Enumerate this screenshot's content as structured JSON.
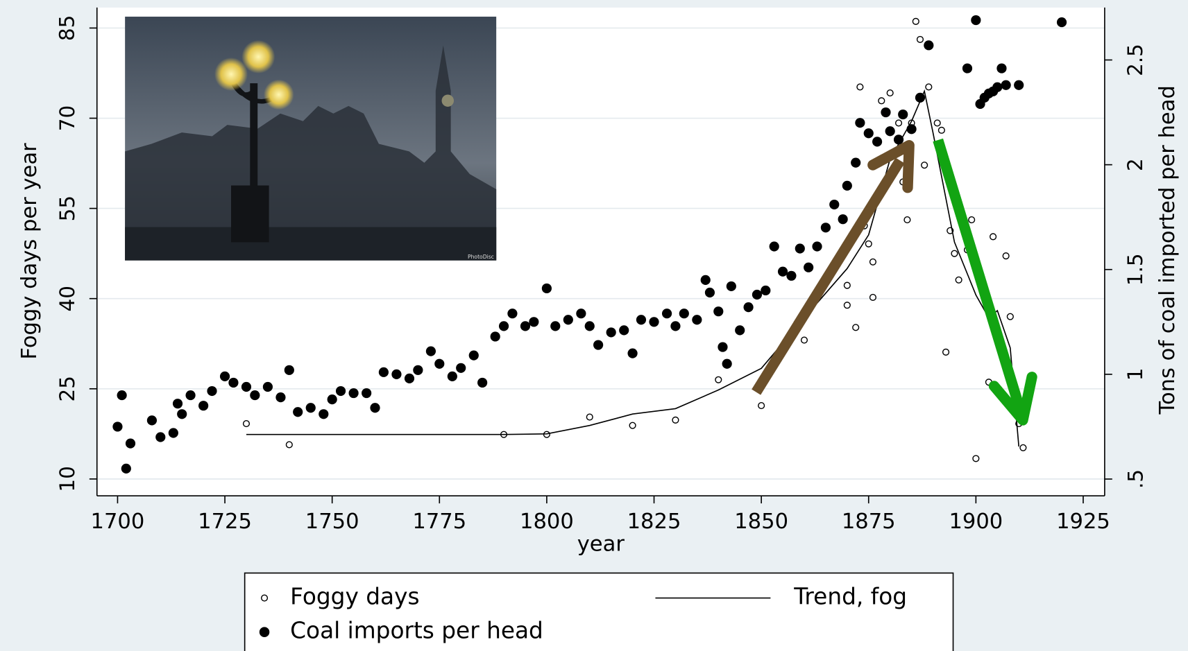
{
  "chart_data": {
    "type": "scatter",
    "xlabel": "year",
    "ylabel": "Foggy days per year",
    "y2label": "Tons of coal imported per head",
    "xlim": [
      1695.2,
      1930
    ],
    "ylim": [
      7.2,
      88.4
    ],
    "y2lim": [
      0.42,
      2.75
    ],
    "xticks": [
      1700,
      1725,
      1750,
      1775,
      1800,
      1825,
      1850,
      1875,
      1900,
      1925
    ],
    "yticks": [
      10,
      25,
      40,
      55,
      70,
      85
    ],
    "y2ticks": [
      {
        "value": 0.5,
        "label": ".5"
      },
      1,
      1.5,
      2,
      2.5
    ],
    "grid": true,
    "legend": "bottom",
    "series": [
      {
        "name": "Foggy days",
        "type": "scatter",
        "marker": "hollow",
        "color": "#000000",
        "x": [
          1730,
          1740,
          1790,
          1800,
          1810,
          1820,
          1830,
          1840,
          1850,
          1860,
          1870,
          1870,
          1872,
          1873,
          1874,
          1875,
          1876,
          1876,
          1878,
          1880,
          1882,
          1883,
          1884,
          1885,
          1886,
          1887,
          1888,
          1889,
          1891,
          1892,
          1893,
          1894,
          1895,
          1896,
          1898,
          1899,
          1900,
          1903,
          1904,
          1907,
          1908,
          1910,
          1911
        ],
        "values": [
          19.2,
          15.7,
          17.4,
          17.4,
          20.3,
          18.9,
          19.8,
          26.5,
          22.2,
          33.1,
          42.2,
          38.9,
          35.2,
          75.2,
          52.1,
          49.1,
          46.1,
          40.2,
          72.9,
          74.2,
          69.2,
          59.4,
          53.1,
          69.2,
          86.1,
          83.1,
          62.2,
          75.2,
          69.2,
          68,
          31.1,
          51.3,
          47.5,
          43.1,
          48.1,
          53.1,
          13.4,
          26.1,
          50.3,
          47.1,
          37,
          19.2,
          15.2
        ]
      },
      {
        "name": "Trend, fog",
        "type": "line",
        "color": "#000000",
        "x": [
          1730,
          1790,
          1800,
          1810,
          1820,
          1830,
          1840,
          1850,
          1860,
          1870,
          1875,
          1880,
          1885,
          1888,
          1890,
          1895,
          1900,
          1903,
          1905,
          1908,
          1910
        ],
        "values": [
          17.4,
          17.4,
          17.5,
          18.9,
          20.8,
          21.7,
          24.8,
          28.4,
          36.8,
          45,
          50.6,
          63.2,
          69.5,
          74.5,
          67.6,
          49.4,
          40.6,
          36.8,
          38,
          31.8,
          15.4
        ]
      },
      {
        "name": "Coal imports per head",
        "type": "scatter",
        "marker": "filled",
        "color": "#000000",
        "axis": "y2",
        "x": [
          1700,
          1701,
          1702,
          1703,
          1708,
          1710,
          1713,
          1714,
          1715,
          1717,
          1720,
          1722,
          1725,
          1727,
          1730,
          1732,
          1735,
          1738,
          1740,
          1742,
          1745,
          1748,
          1750,
          1752,
          1755,
          1758,
          1760,
          1762,
          1765,
          1768,
          1770,
          1773,
          1775,
          1778,
          1780,
          1783,
          1785,
          1788,
          1790,
          1792,
          1795,
          1797,
          1800,
          1802,
          1805,
          1808,
          1810,
          1812,
          1815,
          1818,
          1820,
          1822,
          1825,
          1828,
          1830,
          1832,
          1835,
          1837,
          1838,
          1840,
          1841,
          1842,
          1843,
          1845,
          1847,
          1849,
          1851,
          1853,
          1855,
          1857,
          1859,
          1861,
          1863,
          1865,
          1867,
          1869,
          1870,
          1872,
          1873,
          1875,
          1877,
          1879,
          1880,
          1882,
          1883,
          1885,
          1887,
          1889,
          1898,
          1900,
          1901,
          1902,
          1903,
          1904,
          1905,
          1906,
          1907,
          1910,
          1920
        ],
        "values": [
          0.75,
          0.9,
          0.55,
          0.67,
          0.78,
          0.7,
          0.72,
          0.86,
          0.81,
          0.9,
          0.85,
          0.92,
          0.99,
          0.96,
          0.94,
          0.9,
          0.94,
          0.89,
          1.02,
          0.82,
          0.84,
          0.81,
          0.88,
          0.92,
          0.91,
          0.91,
          0.84,
          1.01,
          1.0,
          0.98,
          1.02,
          1.11,
          1.05,
          0.99,
          1.03,
          1.09,
          0.96,
          1.18,
          1.23,
          1.29,
          1.23,
          1.25,
          1.41,
          1.23,
          1.26,
          1.29,
          1.23,
          1.14,
          1.2,
          1.21,
          1.1,
          1.26,
          1.25,
          1.29,
          1.23,
          1.29,
          1.26,
          1.45,
          1.39,
          1.3,
          1.13,
          1.05,
          1.42,
          1.21,
          1.32,
          1.38,
          1.4,
          1.61,
          1.49,
          1.47,
          1.6,
          1.51,
          1.61,
          1.7,
          1.81,
          1.74,
          1.9,
          2.01,
          2.2,
          2.15,
          2.11,
          2.25,
          2.16,
          2.12,
          2.24,
          2.17,
          2.32,
          2.57,
          2.46,
          2.69,
          2.29,
          2.32,
          2.34,
          2.35,
          2.37,
          2.46,
          2.38,
          2.38,
          2.68
        ]
      }
    ]
  },
  "inset_credit": "PhotoDisc"
}
